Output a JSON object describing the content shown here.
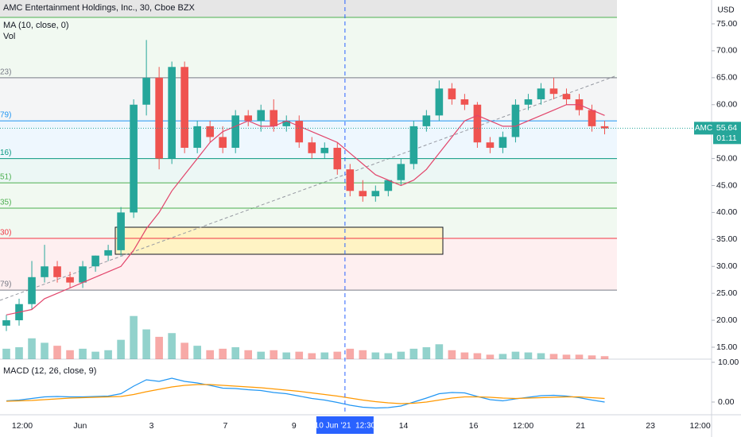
{
  "chart_data": {
    "type": "candlestick",
    "title": "AMC Entertainment Holdings, Inc., 30, Cboe BZX",
    "indicator_labels": [
      "MA (10, close, 0)",
      "Vol"
    ],
    "currency": "USD",
    "colors": {
      "up": "#26a69a",
      "down": "#ef5350"
    },
    "open": [
      19,
      20,
      23,
      28,
      30,
      28,
      27,
      30,
      32,
      33,
      40,
      60,
      65,
      50,
      67,
      52,
      56,
      54,
      52,
      58,
      57,
      59,
      56,
      57,
      53,
      51,
      52,
      48,
      44,
      43,
      44,
      46,
      49,
      56,
      58,
      63,
      61,
      60,
      53,
      52,
      54,
      60,
      61,
      63,
      62,
      61,
      59,
      56
    ],
    "high": [
      21,
      24,
      31,
      34,
      31,
      29,
      31,
      32,
      34,
      41,
      61,
      72,
      67,
      68,
      68,
      57,
      57,
      56,
      59,
      59,
      60,
      61,
      58,
      58,
      54,
      53,
      53,
      49,
      46,
      45,
      46,
      50,
      57,
      59,
      64.5,
      64,
      62,
      60.5,
      54,
      55,
      61,
      62,
      64,
      65,
      63,
      62,
      60,
      57
    ],
    "low": [
      18,
      19,
      22,
      27,
      27,
      26,
      26,
      29,
      31,
      32,
      39,
      58,
      48,
      49,
      51,
      51,
      53,
      51,
      51,
      56,
      55,
      55,
      55,
      52,
      50,
      50,
      47,
      43,
      42,
      42,
      43,
      45,
      48,
      55,
      57,
      60,
      59,
      52,
      51,
      51,
      53,
      59,
      60,
      61,
      60,
      58,
      55,
      54.5
    ],
    "close": [
      20,
      23,
      28,
      30,
      28,
      27,
      30,
      32,
      33,
      40,
      60,
      65,
      50,
      67,
      52,
      56,
      54,
      52,
      58,
      57,
      59,
      56,
      57,
      53,
      51,
      52,
      48,
      44,
      43,
      44,
      46,
      49,
      56,
      58,
      63,
      61,
      60,
      53,
      52,
      54,
      60,
      61,
      63,
      62,
      61,
      59,
      56,
      55.6
    ],
    "volume": [
      14,
      16,
      28,
      22,
      18,
      12,
      14,
      10,
      12,
      26,
      58,
      40,
      30,
      35,
      22,
      18,
      12,
      14,
      16,
      12,
      10,
      12,
      9,
      10,
      8,
      9,
      10,
      14,
      12,
      9,
      8,
      10,
      14,
      16,
      20,
      12,
      9,
      8,
      6,
      7,
      10,
      9,
      8,
      7,
      6,
      6,
      5,
      4
    ],
    "volume_ylim": [
      0,
      100
    ],
    "ma": {
      "name": "MA (10, close, 0)",
      "color": "#e2456b",
      "values": [
        21,
        21.5,
        22,
        24,
        25,
        26,
        27,
        28,
        29,
        30,
        33,
        37,
        40,
        44,
        47,
        50,
        53,
        55,
        56,
        57,
        56,
        56,
        57,
        56,
        55,
        54,
        53,
        51,
        49,
        47,
        46,
        45,
        46,
        48,
        51,
        54,
        57,
        58,
        57,
        56,
        56,
        57,
        58,
        59,
        60,
        60,
        59,
        58
      ]
    },
    "ylim": [
      13.6,
      76.2
    ],
    "yticks": [
      {
        "value": 15,
        "label": "15.00"
      },
      {
        "value": 20,
        "label": "20.00"
      },
      {
        "value": 25,
        "label": "25.00"
      },
      {
        "value": 30,
        "label": "30.00"
      },
      {
        "value": 35,
        "label": "35.00"
      },
      {
        "value": 40,
        "label": "40.00"
      },
      {
        "value": 45,
        "label": "45.00"
      },
      {
        "value": 50,
        "label": "50.00"
      },
      {
        "value": 55,
        "label": "55.00"
      },
      {
        "value": 60,
        "label": "60.00"
      },
      {
        "value": 65,
        "label": "65.00"
      },
      {
        "value": 70,
        "label": "70.00"
      },
      {
        "value": 75,
        "label": "75.00"
      }
    ],
    "fib_levels": [
      {
        "value": 76.2,
        "color": "#4caf50"
      },
      {
        "value": 65,
        "label": "23)",
        "color": "#787b86"
      },
      {
        "value": 57,
        "label": "79)",
        "color": "#2196f3"
      },
      {
        "value": 50,
        "label": "16)",
        "color": "#089981"
      },
      {
        "value": 45.5,
        "label": "51)",
        "color": "#4caf50"
      },
      {
        "value": 40.8,
        "label": "35)",
        "color": "#4caf50"
      },
      {
        "value": 35.2,
        "label": "30)",
        "color": "#f23645"
      },
      {
        "value": 25.6,
        "label": "79)",
        "color": "#787b86"
      }
    ],
    "last_price": {
      "symbol": "AMC",
      "value": 55.64,
      "countdown": "01:11"
    },
    "xlim": [
      -0.5,
      55.4
    ],
    "xticks": [
      {
        "value": 1.25,
        "label": "12:00"
      },
      {
        "value": 5.8,
        "label": "Jun"
      },
      {
        "value": 11.4,
        "label": "3"
      },
      {
        "value": 17.2,
        "label": "7"
      },
      {
        "value": 22.6,
        "label": "9"
      },
      {
        "value": 31.2,
        "label": "14"
      },
      {
        "value": 36.7,
        "label": "16"
      },
      {
        "value": 40.6,
        "label": "12:00"
      },
      {
        "value": 45.1,
        "label": "21"
      },
      {
        "value": 50.6,
        "label": "23"
      },
      {
        "value": 54.5,
        "label": "12:00"
      }
    ],
    "cursor": {
      "value": 26.6,
      "label": "10 Jun '21  12:30"
    },
    "macd": {
      "title": "MACD (12, 26, close, 9)",
      "ylim": [
        -2.8,
        11.2
      ],
      "yticks": [
        {
          "value": 10,
          "label": "10.00"
        },
        {
          "value": 0,
          "label": "0.00"
        }
      ],
      "macd_color": "#2196f3",
      "signal_color": "#ff9800",
      "macd": [
        0.3,
        0.5,
        0.9,
        1.3,
        1.4,
        1.3,
        1.3,
        1.4,
        1.5,
        2.1,
        4,
        5.6,
        5.2,
        6,
        5.2,
        4.8,
        4.2,
        3.5,
        3.4,
        3.1,
        2.9,
        2.4,
        2.1,
        1.5,
        0.9,
        0.5,
        -0.1,
        -0.8,
        -1.3,
        -1.5,
        -1.4,
        -1,
        0,
        1,
        2.1,
        2.4,
        2.3,
        1.4,
        0.6,
        0.3,
        0.8,
        1.2,
        1.6,
        1.7,
        1.5,
        1.1,
        0.5,
        0
      ],
      "signal": [
        0.2,
        0.3,
        0.4,
        0.6,
        0.8,
        1,
        1.1,
        1.2,
        1.3,
        1.4,
        1.9,
        2.6,
        3.2,
        3.8,
        4.2,
        4.4,
        4.4,
        4.2,
        4,
        3.8,
        3.6,
        3.3,
        3,
        2.7,
        2.3,
        1.9,
        1.5,
        1,
        0.5,
        0.1,
        -0.2,
        -0.4,
        -0.3,
        0,
        0.5,
        1,
        1.3,
        1.3,
        1.2,
        1,
        0.9,
        1,
        1.1,
        1.2,
        1.3,
        1.3,
        1.1,
        0.9
      ]
    }
  }
}
